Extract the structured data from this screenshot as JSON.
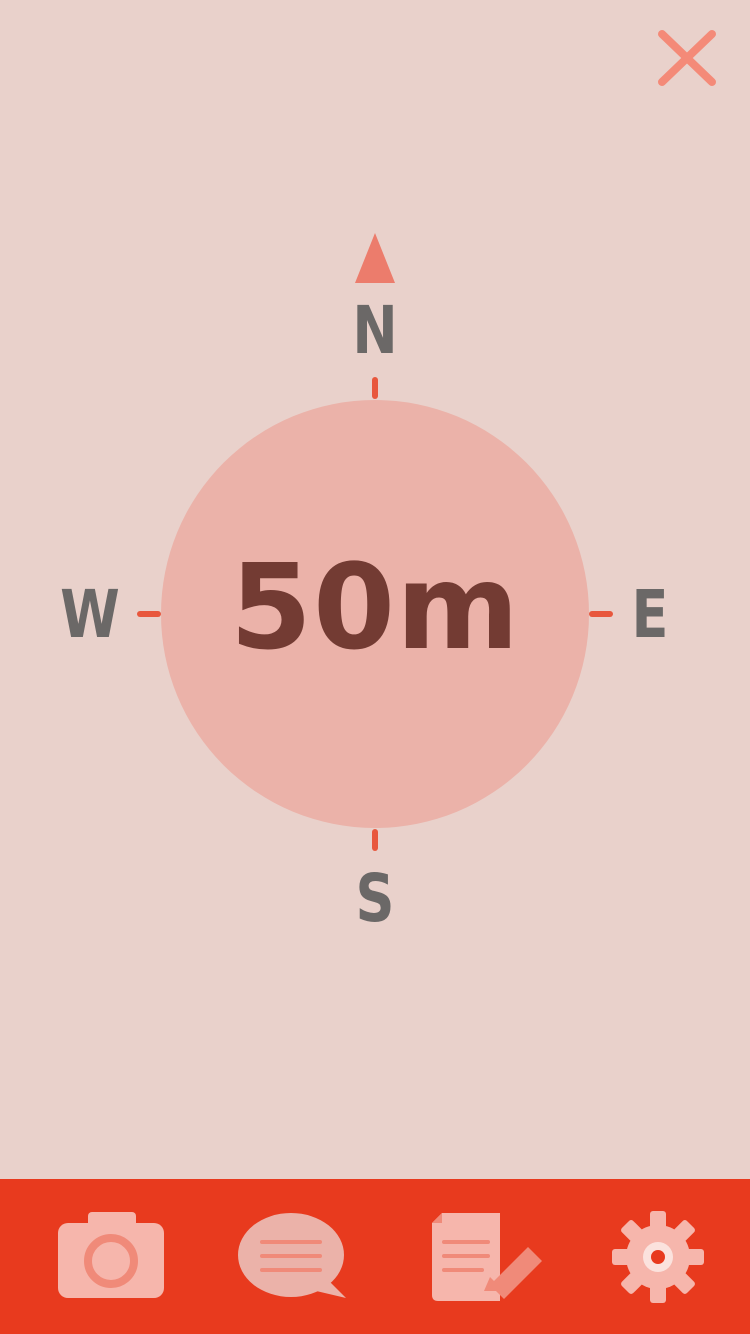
{
  "compass": {
    "distance": "50m",
    "directions": {
      "north": "N",
      "south": "S",
      "east": "E",
      "west": "W"
    }
  },
  "toolbar": {
    "close_icon": "close-icon",
    "tabs": [
      {
        "id": "camera",
        "icon": "camera-icon"
      },
      {
        "id": "messages",
        "icon": "speech-bubble-icon"
      },
      {
        "id": "notes",
        "icon": "document-pencil-icon"
      },
      {
        "id": "settings",
        "icon": "gear-icon"
      }
    ]
  },
  "colors": {
    "background": "#E9D1CB",
    "dial": "#EBB2A9",
    "accent": "#E8573D",
    "north_arrow": "#EC7C6C",
    "direction_text": "#6B6867",
    "distance_text": "#733B33",
    "tab_bar": "#E83A1E",
    "tab_icon": "#F6B6AC",
    "close_icon": "#F48A78"
  }
}
